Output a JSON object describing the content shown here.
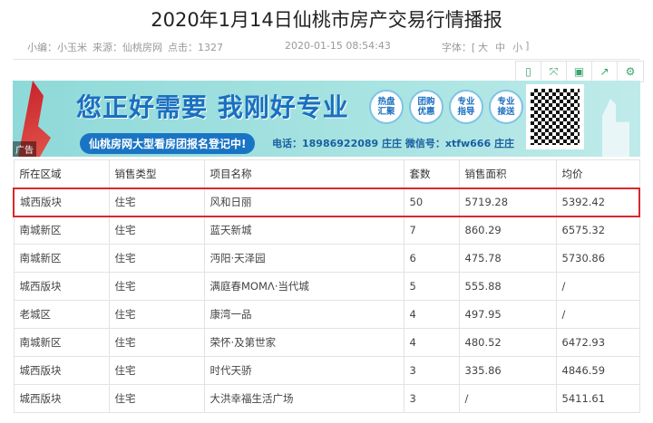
{
  "article": {
    "title": "2020年1月14日仙桃市房产交易行情播报",
    "editor": "小编：小玉米",
    "source": "来源：仙桃房网",
    "clicks": "点击：1327",
    "datetime": "2020-01-15 08:54:43",
    "font_label": "字体：[",
    "font_large": "大",
    "font_medium": "中",
    "font_small": "小",
    "font_end": "]"
  },
  "toolbar": {
    "icons": [
      "mobile-icon",
      "fullscreen-icon",
      "save-icon",
      "share-icon",
      "settings-icon"
    ]
  },
  "banner": {
    "slogan": "您正好需要 我刚好专业",
    "badges": [
      "热盘汇聚",
      "团购优惠",
      "专业指导",
      "专业接送"
    ],
    "pill": "仙桃房网大型看房团报名登记中!",
    "contact": "电话：18986922089 庄庄  微信号：xtfw666 庄庄",
    "ad_label": "广告"
  },
  "table": {
    "headers": [
      "所在区域",
      "销售类型",
      "项目名称",
      "套数",
      "销售面积",
      "均价"
    ],
    "rows": [
      [
        "城西版块",
        "住宅",
        "风和日丽",
        "50",
        "5719.28",
        "5392.42"
      ],
      [
        "南城新区",
        "住宅",
        "蓝天新城",
        "7",
        "860.29",
        "6575.32"
      ],
      [
        "南城新区",
        "住宅",
        "沔阳·天泽园",
        "6",
        "475.78",
        "5730.86"
      ],
      [
        "城西版块",
        "住宅",
        "满庭春MOMΛ·当代城",
        "5",
        "555.88",
        "/"
      ],
      [
        "老城区",
        "住宅",
        "康湾一品",
        "4",
        "497.95",
        "/"
      ],
      [
        "南城新区",
        "住宅",
        "荣怀·及第世家",
        "4",
        "480.52",
        "6472.93"
      ],
      [
        "城西版块",
        "住宅",
        "时代天骄",
        "3",
        "335.86",
        "4846.59"
      ],
      [
        "城西版块",
        "住宅",
        "大洪幸福生活广场",
        "3",
        "/",
        "5411.61"
      ]
    ],
    "highlight_color": "#d8282e"
  }
}
